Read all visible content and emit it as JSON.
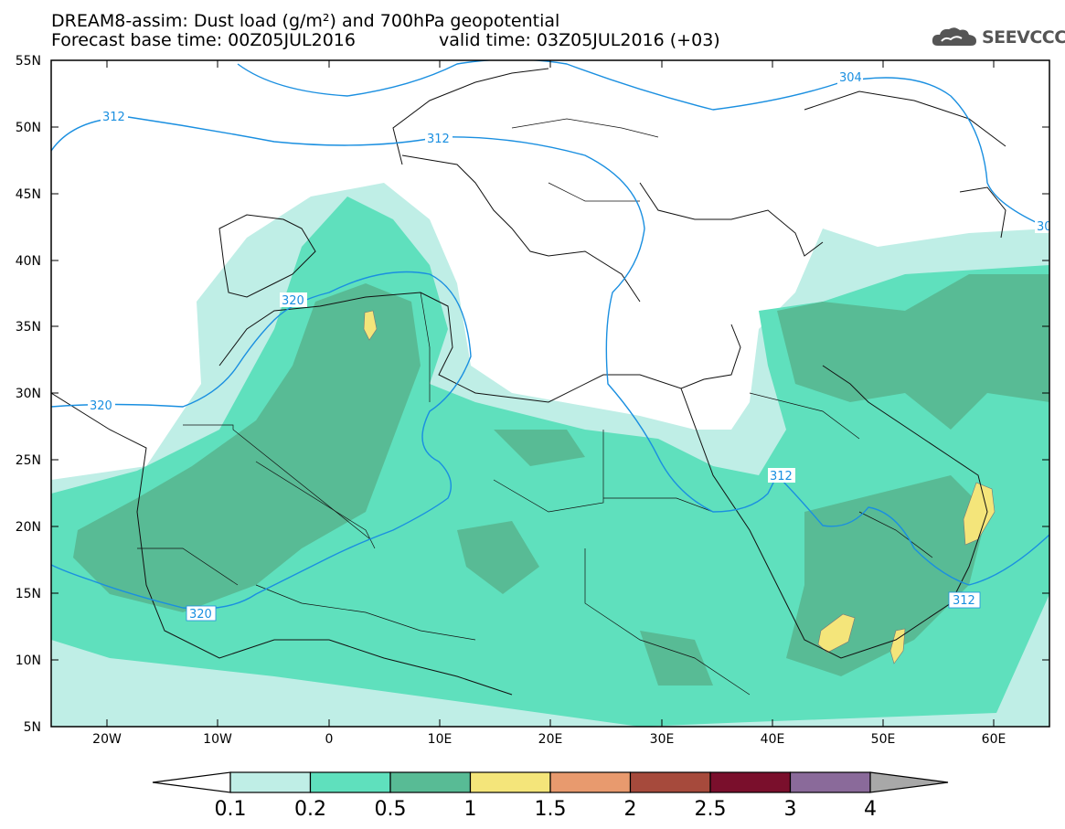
{
  "header": {
    "title": "DREAM8-assim: Dust load (g/m²) and 700hPa geopotential",
    "base_time": "Forecast base time: 00Z05JUL2016",
    "valid_time": "valid time: 03Z05JUL2016 (+03)"
  },
  "logo": {
    "text": "SEEVCCC",
    "icon": "cloud-icon"
  },
  "axes": {
    "lon_labels": [
      "20W",
      "10W",
      "0",
      "10E",
      "20E",
      "30E",
      "40E",
      "50E",
      "60E"
    ],
    "lat_labels": [
      "55N",
      "50N",
      "45N",
      "40N",
      "35N",
      "30N",
      "25N",
      "20N",
      "15N",
      "10N",
      "5N"
    ]
  },
  "contour_labels": [
    "304",
    "312",
    "312",
    "320",
    "320",
    "320",
    "312",
    "312",
    "30"
  ],
  "colorbar": {
    "labels": [
      "0.1",
      "0.2",
      "0.5",
      "1",
      "1.5",
      "2",
      "2.5",
      "3",
      "4"
    ],
    "colors": [
      "#ffffff",
      "#bfeee6",
      "#5fe0bd",
      "#58bb95",
      "#f4e57a",
      "#e89a6e",
      "#a64a3c",
      "#7a0f2c",
      "#8a6a9a",
      "#a8a8a8"
    ]
  },
  "colors": {
    "dust_light": "#bfeee6",
    "dust_mid": "#5fe0bd",
    "dust_dark": "#58bb95",
    "dust_yellow": "#f4e57a",
    "contour": "#1a8fe0"
  }
}
